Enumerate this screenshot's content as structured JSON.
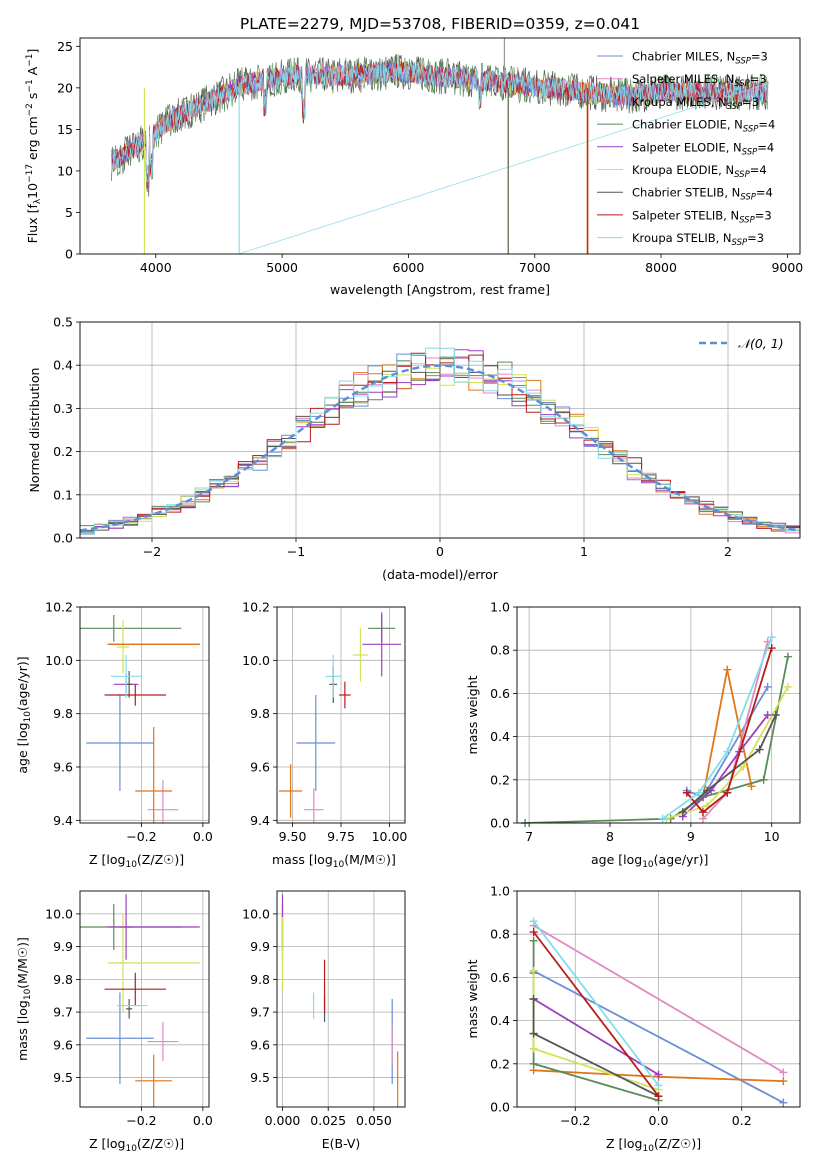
{
  "title": "PLATE=2279, MJD=53708, FIBERID=0359, z=0.041",
  "colors": {
    "Chabrier MILES": "#6b8ed6",
    "Salpeter MILES": "#e08ac0",
    "Kroupa MILES": "#e0761c",
    "Chabrier ELODIE": "#5b8a5b",
    "Salpeter ELODIE": "#9b3fbf",
    "Kroupa ELODIE": "#d4e157",
    "Chabrier STELIB": "#555555",
    "Salpeter STELIB": "#b71c1c",
    "Kroupa STELIB": "#80deea",
    "gauss": "#5b8ed6"
  },
  "chart_data": [
    {
      "type": "line",
      "panel": "spectrum",
      "xlabel": "wavelength [Angstrom, rest frame]",
      "ylabel_text": "Flux [f",
      "xlim": [
        3400,
        9100
      ],
      "ylim": [
        0,
        26
      ],
      "xticks": [
        "4000",
        "5000",
        "6000",
        "7000",
        "8000",
        "9000"
      ],
      "yticks": [
        "0",
        "5",
        "10",
        "15",
        "20",
        "25"
      ],
      "legend": [
        {
          "name": "Chabrier MILES",
          "sub": "3"
        },
        {
          "name": "Salpeter MILES",
          "sub": "3"
        },
        {
          "name": "Kroupa MILES",
          "sub": "3"
        },
        {
          "name": "Chabrier ELODIE",
          "sub": "4"
        },
        {
          "name": "Salpeter ELODIE",
          "sub": "4"
        },
        {
          "name": "Kroupa ELODIE",
          "sub": "4"
        },
        {
          "name": "Chabrier STELIB",
          "sub": "4"
        },
        {
          "name": "Salpeter STELIB",
          "sub": "3"
        },
        {
          "name": "Kroupa STELIB",
          "sub": "3"
        }
      ],
      "continuum": {
        "x": [
          3650,
          3800,
          3950,
          4100,
          4300,
          4500,
          4700,
          4900,
          5100,
          5300,
          5600,
          5900,
          6200,
          6500,
          6800,
          7100,
          7400,
          7700,
          8000,
          8300,
          8600,
          8850
        ],
        "y": [
          11,
          12.5,
          14,
          16,
          17.5,
          19,
          20.5,
          21,
          21.5,
          21.5,
          21.5,
          22,
          21.5,
          21,
          20.5,
          20,
          19.5,
          19,
          19.5,
          19.5,
          19.5,
          19.5
        ]
      }
    },
    {
      "type": "line",
      "panel": "residual_hist",
      "xlabel": "(data-model)/error",
      "ylabel": "Normed distribution",
      "xlim": [
        -2.5,
        2.5
      ],
      "ylim": [
        0,
        0.5
      ],
      "xticks": [
        "−2",
        "−1",
        "0",
        "1",
        "2"
      ],
      "yticks": [
        "0.0",
        "0.1",
        "0.2",
        "0.3",
        "0.4",
        "0.5"
      ],
      "legend_label": "𝒩(0, 1)"
    },
    {
      "type": "scatter",
      "panel": "age_vs_Z",
      "xlabel": "Z [log",
      "ylabel": "age  [log",
      "xlim": [
        -0.4,
        0.02
      ],
      "ylim": [
        9.39,
        10.2
      ],
      "xticks": [
        "−0.2",
        "0.0"
      ],
      "yticks": [
        "9.4",
        "9.6",
        "9.8",
        "10.0",
        "10.2"
      ],
      "points": [
        {
          "s": "Chabrier MILES",
          "x": -0.27,
          "y": 9.69,
          "xe": 0.11,
          "ye": 0.18
        },
        {
          "s": "Salpeter MILES",
          "x": -0.13,
          "y": 9.44,
          "xe": 0.05,
          "ye": 0.11
        },
        {
          "s": "Kroupa MILES",
          "x": -0.16,
          "y": 9.51,
          "xe": 0.06,
          "ye": 0.24
        },
        {
          "s": "Chabrier ELODIE",
          "x": -0.29,
          "y": 10.12,
          "xe": 0.22,
          "ye": 0.05
        },
        {
          "s": "Salpeter ELODIE",
          "x": -0.25,
          "y": 9.91,
          "xe": 0.04,
          "ye": 0.04
        },
        {
          "s": "Kroupa ELODIE",
          "x": -0.26,
          "y": 10.05,
          "xe": 0.02,
          "ye": 0.1
        },
        {
          "s": "Chabrier STELIB",
          "x": -0.24,
          "y": 9.91,
          "xe": 0.01,
          "ye": 0.05
        },
        {
          "s": "Salpeter STELIB",
          "x": -0.22,
          "y": 9.87,
          "xe": 0.1,
          "ye": 0.04
        },
        {
          "s": "Kroupa STELIB",
          "x": -0.25,
          "y": 9.94,
          "xe": 0.05,
          "ye": 0.08
        },
        {
          "s": "Salpeter STELIB",
          "x": -0.16,
          "y": 10.06,
          "xe": 0.15,
          "ye": 0.0
        },
        {
          "s": "Kroupa MILES",
          "x": -0.16,
          "y": 10.06,
          "xe": 0.15,
          "ye": 0.0
        }
      ]
    },
    {
      "type": "scatter",
      "panel": "age_vs_mass",
      "xlabel": "mass [log",
      "xlim": [
        9.42,
        10.08
      ],
      "ylim": [
        9.39,
        10.2
      ],
      "xticks": [
        "9.50",
        "9.75",
        "10.00"
      ],
      "yticks": [
        "9.4",
        "9.6",
        "9.8",
        "10.0",
        "10.2"
      ],
      "points": [
        {
          "s": "Chabrier MILES",
          "x": 9.62,
          "y": 9.69,
          "xe": 0.1,
          "ye": 0.18
        },
        {
          "s": "Salpeter MILES",
          "x": 9.61,
          "y": 9.44,
          "xe": 0.05,
          "ye": 0.08
        },
        {
          "s": "Kroupa MILES",
          "x": 9.49,
          "y": 9.51,
          "xe": 0.06,
          "ye": 0.1
        },
        {
          "s": "Chabrier ELODIE",
          "x": 9.96,
          "y": 10.12,
          "xe": 0.07,
          "ye": 0.05
        },
        {
          "s": "Salpeter ELODIE",
          "x": 9.96,
          "y": 10.06,
          "xe": 0.1,
          "ye": 0.12
        },
        {
          "s": "Kroupa ELODIE",
          "x": 9.85,
          "y": 10.02,
          "xe": 0.04,
          "ye": 0.1
        },
        {
          "s": "Chabrier STELIB",
          "x": 9.71,
          "y": 9.91,
          "xe": 0.02,
          "ye": 0.07
        },
        {
          "s": "Salpeter STELIB",
          "x": 9.77,
          "y": 9.87,
          "xe": 0.03,
          "ye": 0.05
        },
        {
          "s": "Kroupa STELIB",
          "x": 9.71,
          "y": 9.94,
          "xe": 0.04,
          "ye": 0.08
        }
      ]
    },
    {
      "type": "line",
      "panel": "mass_weight_vs_age",
      "xlabel": "age  [log",
      "ylabel": "mass weight",
      "xlim": [
        6.85,
        10.35
      ],
      "ylim": [
        0,
        1
      ],
      "xticks": [
        "7",
        "8",
        "9",
        "10"
      ],
      "yticks": [
        "0.0",
        "0.2",
        "0.4",
        "0.6",
        "0.8",
        "1.0"
      ],
      "series": [
        {
          "name": "Chabrier MILES",
          "x": [
            8.95,
            9.15,
            9.95
          ],
          "y": [
            0.15,
            0.12,
            0.63
          ]
        },
        {
          "name": "Salpeter MILES",
          "x": [
            9.15,
            9.45,
            9.95
          ],
          "y": [
            0.02,
            0.14,
            0.84
          ]
        },
        {
          "name": "Kroupa MILES",
          "x": [
            9.15,
            9.45,
            9.75
          ],
          "y": [
            0.12,
            0.71,
            0.17
          ]
        },
        {
          "name": "Chabrier ELODIE",
          "x": [
            6.95,
            8.75,
            9.15,
            9.9,
            10.2
          ],
          "y": [
            0.0,
            0.02,
            0.12,
            0.2,
            0.77
          ]
        },
        {
          "name": "Salpeter ELODIE",
          "x": [
            8.9,
            9.25,
            9.6,
            9.95
          ],
          "y": [
            0.03,
            0.15,
            0.33,
            0.5
          ]
        },
        {
          "name": "Kroupa ELODIE",
          "x": [
            8.7,
            9.2,
            9.65,
            10.2
          ],
          "y": [
            0.02,
            0.08,
            0.26,
            0.63
          ]
        },
        {
          "name": "Chabrier STELIB",
          "x": [
            8.9,
            9.2,
            9.85,
            10.05
          ],
          "y": [
            0.05,
            0.15,
            0.34,
            0.5
          ]
        },
        {
          "name": "Salpeter STELIB",
          "x": [
            8.95,
            9.15,
            9.45,
            10.0
          ],
          "y": [
            0.14,
            0.05,
            0.14,
            0.81
          ]
        },
        {
          "name": "Kroupa STELIB",
          "x": [
            8.65,
            9.1,
            9.45,
            10.0
          ],
          "y": [
            0.02,
            0.14,
            0.33,
            0.86
          ]
        }
      ]
    },
    {
      "type": "scatter",
      "panel": "mass_vs_Z",
      "xlabel": "Z [log",
      "ylabel": "mass [log",
      "xlim": [
        -0.4,
        0.02
      ],
      "ylim": [
        9.41,
        10.07
      ],
      "xticks": [
        "−0.2",
        "0.0"
      ],
      "yticks": [
        "9.5",
        "9.6",
        "9.7",
        "9.8",
        "9.9",
        "10.0"
      ],
      "points": [
        {
          "s": "Chabrier MILES",
          "x": -0.27,
          "y": 9.62,
          "xe": 0.11,
          "ye": 0.14
        },
        {
          "s": "Salpeter MILES",
          "x": -0.13,
          "y": 9.61,
          "xe": 0.05,
          "ye": 0.06
        },
        {
          "s": "Kroupa MILES",
          "x": -0.16,
          "y": 9.49,
          "xe": 0.06,
          "ye": 0.08
        },
        {
          "s": "Chabrier ELODIE",
          "x": -0.29,
          "y": 9.96,
          "xe": 0.22,
          "ye": 0.07
        },
        {
          "s": "Salpeter ELODIE",
          "x": -0.25,
          "y": 9.96,
          "xe": 0.02,
          "ye": 0.1
        },
        {
          "s": "Kroupa ELODIE",
          "x": -0.26,
          "y": 9.85,
          "xe": 0.02,
          "ye": 0.15
        },
        {
          "s": "Chabrier STELIB",
          "x": -0.24,
          "y": 9.71,
          "xe": 0.01,
          "ye": 0.03
        },
        {
          "s": "Salpeter STELIB",
          "x": -0.22,
          "y": 9.77,
          "xe": 0.1,
          "ye": 0.05
        },
        {
          "s": "Kroupa STELIB",
          "x": -0.23,
          "y": 9.72,
          "xe": 0.05,
          "ye": 0.0
        },
        {
          "s": "Salpeter ELODIE",
          "x": -0.16,
          "y": 9.96,
          "xe": 0.15,
          "ye": 0.0
        },
        {
          "s": "Kroupa ELODIE",
          "x": -0.16,
          "y": 9.85,
          "xe": 0.15,
          "ye": 0.0
        }
      ]
    },
    {
      "type": "scatter",
      "panel": "mass_vs_ebv",
      "xlabel": "E(B-V)",
      "xlim": [
        -0.003,
        0.067
      ],
      "ylim": [
        9.41,
        10.07
      ],
      "xticks": [
        "0.000",
        "0.025",
        "0.050"
      ],
      "yticks": [
        "9.5",
        "9.6",
        "9.7",
        "9.8",
        "9.9",
        "10.0"
      ],
      "points": [
        {
          "s": "Chabrier MILES",
          "x": 0.06,
          "y": 9.61,
          "ye": 0.13
        },
        {
          "s": "Salpeter MILES",
          "x": 0.06,
          "y": 9.6,
          "ye": 0.06
        },
        {
          "s": "Kroupa MILES",
          "x": 0.063,
          "y": 9.49,
          "ye": 0.09
        },
        {
          "s": "Chabrier ELODIE",
          "x": 0.0,
          "y": 9.96,
          "ye": 0.07
        },
        {
          "s": "Salpeter ELODIE",
          "x": 0.0,
          "y": 9.96,
          "ye": 0.1
        },
        {
          "s": "Kroupa ELODIE",
          "x": 0.0,
          "y": 9.88,
          "ye": 0.11
        },
        {
          "s": "Chabrier STELIB",
          "x": 0.023,
          "y": 9.71,
          "ye": 0.04
        },
        {
          "s": "Salpeter STELIB",
          "x": 0.023,
          "y": 9.78,
          "ye": 0.08
        },
        {
          "s": "Kroupa STELIB",
          "x": 0.017,
          "y": 9.72,
          "ye": 0.04
        }
      ]
    },
    {
      "type": "line",
      "panel": "mass_weight_vs_Z",
      "xlabel": "Z [log",
      "ylabel": "mass weight",
      "xlim": [
        -0.34,
        0.34
      ],
      "ylim": [
        0,
        1
      ],
      "xticks": [
        "−0.2",
        "0.0",
        "0.2"
      ],
      "yticks": [
        "0.0",
        "0.2",
        "0.4",
        "0.6",
        "0.8",
        "1.0"
      ],
      "series": [
        {
          "name": "Chabrier MILES",
          "x": [
            -0.3,
            0.3
          ],
          "y": [
            0.63,
            0.02
          ]
        },
        {
          "name": "Salpeter MILES",
          "x": [
            -0.3,
            0.3
          ],
          "y": [
            0.84,
            0.16
          ]
        },
        {
          "name": "Kroupa MILES",
          "x": [
            -0.3,
            0.0,
            0.3
          ],
          "y": [
            0.17,
            0.14,
            0.12
          ]
        },
        {
          "name": "Chabrier ELODIE",
          "x": [
            -0.3,
            -0.3,
            -0.3,
            -0.3,
            0.0
          ],
          "y": [
            0.77,
            0.62,
            0.34,
            0.2,
            0.03
          ]
        },
        {
          "name": "Salpeter ELODIE",
          "x": [
            -0.3,
            0.0
          ],
          "y": [
            0.5,
            0.15
          ]
        },
        {
          "name": "Kroupa ELODIE",
          "x": [
            -0.3,
            -0.3,
            0.0
          ],
          "y": [
            0.63,
            0.27,
            0.08
          ]
        },
        {
          "name": "Chabrier STELIB",
          "x": [
            -0.3,
            -0.3,
            0.0
          ],
          "y": [
            0.5,
            0.34,
            0.05
          ]
        },
        {
          "name": "Salpeter STELIB",
          "x": [
            -0.3,
            0.0
          ],
          "y": [
            0.81,
            0.05
          ]
        },
        {
          "name": "Kroupa STELIB",
          "x": [
            -0.3,
            0.0
          ],
          "y": [
            0.86,
            0.1
          ]
        }
      ]
    }
  ]
}
